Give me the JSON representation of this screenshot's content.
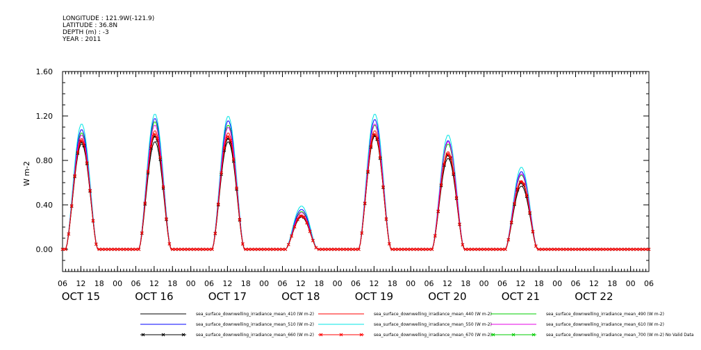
{
  "metadata": {
    "longitude": "LONGITUDE : 121.9W(-121.9)",
    "latitude": "LATITUDE : 36.8N",
    "depth": "DEPTH (m) : -3",
    "year": "YEAR : 2011"
  },
  "chart_data": {
    "type": "line",
    "title": "",
    "ylabel": "W m-2",
    "xlabel": "",
    "ylim": [
      -0.2,
      1.6
    ],
    "y_ticks": [
      "0.00",
      "0.40",
      "0.80",
      "1.20",
      "1.60"
    ],
    "y_tick_values": [
      0.0,
      0.4,
      0.8,
      1.2,
      1.6
    ],
    "x_hour_labels": [
      "06",
      "12",
      "18",
      "00",
      "06",
      "12",
      "18",
      "00",
      "06",
      "12",
      "18",
      "00",
      "06",
      "12",
      "18",
      "00",
      "06",
      "12",
      "18",
      "00",
      "06",
      "12",
      "18",
      "00",
      "06",
      "12",
      "18",
      "00",
      "06",
      "12",
      "18",
      "00",
      "06"
    ],
    "x_day_labels": [
      "OCT 15",
      "OCT 16",
      "OCT 17",
      "OCT 18",
      "OCT 19",
      "OCT 20",
      "OCT 21",
      "OCT 22"
    ],
    "grid": false,
    "legend_position": "bottom",
    "series": [
      {
        "name": "sea_surface_downwelling_irradiance_mean_410 (W m-2)",
        "color": "#000000",
        "marker": "none",
        "daily_peaks": [
          0.95,
          0.97,
          0.97,
          0.29,
          1.02,
          0.82,
          0.57
        ]
      },
      {
        "name": "sea_surface_downwelling_irradiance_mean_440 (W m-2)",
        "color": "#ff0000",
        "marker": "none",
        "daily_peaks": [
          1.0,
          1.07,
          1.05,
          0.31,
          1.07,
          0.88,
          0.62
        ]
      },
      {
        "name": "sea_surface_downwelling_irradiance_mean_490 (W m-2)",
        "color": "#00cc00",
        "marker": "none",
        "daily_peaks": [
          1.05,
          1.15,
          1.12,
          0.34,
          1.12,
          0.95,
          0.67
        ]
      },
      {
        "name": "sea_surface_downwelling_irradiance_mean_510 (W m-2)",
        "color": "#0000ff",
        "marker": "none",
        "daily_peaks": [
          1.08,
          1.18,
          1.16,
          0.36,
          1.17,
          0.98,
          0.7
        ]
      },
      {
        "name": "sea_surface_downwelling_irradiance_mean_550 (W m-2)",
        "color": "#00e5e5",
        "marker": "none",
        "daily_peaks": [
          1.13,
          1.22,
          1.2,
          0.39,
          1.22,
          1.03,
          0.74
        ]
      },
      {
        "name": "sea_surface_downwelling_irradiance_mean_610 (W m-2)",
        "color": "#e500e5",
        "marker": "none",
        "daily_peaks": [
          1.03,
          1.12,
          1.1,
          0.33,
          1.13,
          0.97,
          0.68
        ]
      },
      {
        "name": "sea_surface_downwelling_irradiance_mean_660 (W m-2)",
        "color": "#000000",
        "marker": "x",
        "daily_peaks": [
          0.97,
          1.02,
          1.0,
          0.3,
          1.03,
          0.85,
          0.6
        ]
      },
      {
        "name": "sea_surface_downwelling_irradiance_mean_670 (W m-2)",
        "color": "#ff0000",
        "marker": "x",
        "daily_peaks": [
          0.98,
          1.04,
          1.02,
          0.3,
          1.04,
          0.86,
          0.61
        ]
      },
      {
        "name": "sea_surface_downwelling_irradiance_mean_700 (W m-2) No Valid Data",
        "color": "#00cc00",
        "marker": "x",
        "daily_peaks": []
      }
    ]
  }
}
